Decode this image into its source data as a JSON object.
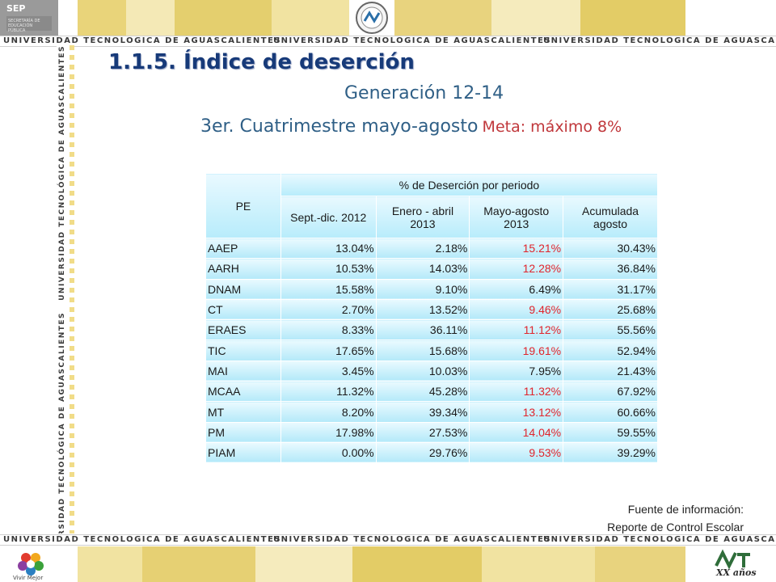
{
  "header": {
    "sep_word": "SEP",
    "sep_small": "SECRETARÍA DE EDUCACIÓN PÚBLICA",
    "band_text": "UNIVERSIDAD TECNOLÓGICA DE AGUASCALIENTES",
    "vertical_text": "UNIVERSIDAD TECNOLÓGICA DE AGUASCALIENTES"
  },
  "title": "1.1.5.  Índice de deserción",
  "subtitle": "Generación 12-14",
  "period": "3er. Cuatrimestre mayo-agosto",
  "goal": "Meta: máximo 8%",
  "table": {
    "pe_header": "PE",
    "group_header": "% de Deserción por periodo",
    "columns": [
      "Sept.-dic. 2012",
      "Enero - abril 2013",
      "Mayo-agosto 2013",
      "Acumulada agosto"
    ],
    "rows": [
      {
        "pe": "AAEP",
        "values": [
          "13.04%",
          "2.18%",
          "15.21%",
          "30.43%"
        ],
        "red": true
      },
      {
        "pe": "AARH",
        "values": [
          "10.53%",
          "14.03%",
          "12.28%",
          "36.84%"
        ],
        "red": true
      },
      {
        "pe": "DNAM",
        "values": [
          "15.58%",
          "9.10%",
          "6.49%",
          "31.17%"
        ],
        "red": false
      },
      {
        "pe": "CT",
        "values": [
          "2.70%",
          "13.52%",
          "9.46%",
          "25.68%"
        ],
        "red": true
      },
      {
        "pe": "ERAES",
        "values": [
          "8.33%",
          "36.11%",
          "11.12%",
          "55.56%"
        ],
        "red": true
      },
      {
        "pe": "TIC",
        "values": [
          "17.65%",
          "15.68%",
          "19.61%",
          "52.94%"
        ],
        "red": true
      },
      {
        "pe": "MAI",
        "values": [
          "3.45%",
          "10.03%",
          "7.95%",
          "21.43%"
        ],
        "red": false
      },
      {
        "pe": "MCAA",
        "values": [
          "11.32%",
          "45.28%",
          "11.32%",
          "67.92%"
        ],
        "red": true
      },
      {
        "pe": "MT",
        "values": [
          "8.20%",
          "39.34%",
          "13.12%",
          "60.66%"
        ],
        "red": true
      },
      {
        "pe": "PM",
        "values": [
          "17.98%",
          "27.53%",
          "14.04%",
          "59.55%"
        ],
        "red": true
      },
      {
        "pe": "PIAM",
        "values": [
          "0.00%",
          "29.76%",
          "9.53%",
          "39.29%"
        ],
        "red": true
      }
    ]
  },
  "source": {
    "line1": "Fuente de información:",
    "line2": "Reporte de Control Escolar"
  },
  "footer": {
    "vivir_mejor": "Vivir Mejor",
    "anniversary": "XX años"
  },
  "colors": {
    "title": "#173a79",
    "subtitle": "#2f5f86",
    "goal": "#c0373b",
    "red_value": "#e0252c",
    "cell_top": "#eafaff",
    "cell_bottom": "#b4e9f9"
  }
}
